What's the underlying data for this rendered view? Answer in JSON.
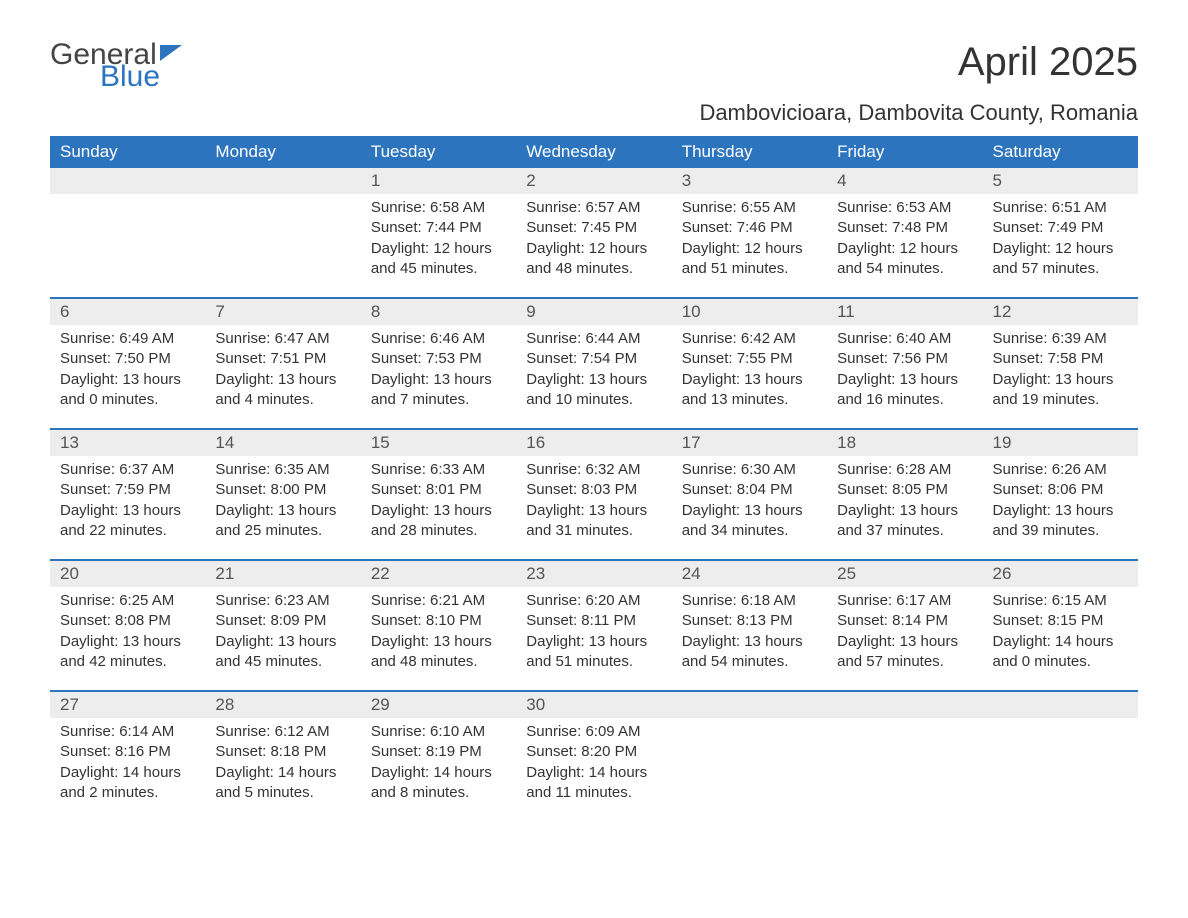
{
  "logo": {
    "text1": "General",
    "text2": "Blue"
  },
  "title": "April 2025",
  "location": "Dambovicioara, Dambovita County, Romania",
  "colors": {
    "header_bg": "#2d74bf",
    "header_text": "#ffffff",
    "daynum_bg": "#ededed",
    "row_border": "#2d74bf",
    "body_text": "#333333",
    "page_bg": "#ffffff"
  },
  "columns": [
    "Sunday",
    "Monday",
    "Tuesday",
    "Wednesday",
    "Thursday",
    "Friday",
    "Saturday"
  ],
  "weeks": [
    {
      "days": [
        null,
        null,
        {
          "n": "1",
          "sunrise": "6:58 AM",
          "sunset": "7:44 PM",
          "dl": "12 hours and 45 minutes."
        },
        {
          "n": "2",
          "sunrise": "6:57 AM",
          "sunset": "7:45 PM",
          "dl": "12 hours and 48 minutes."
        },
        {
          "n": "3",
          "sunrise": "6:55 AM",
          "sunset": "7:46 PM",
          "dl": "12 hours and 51 minutes."
        },
        {
          "n": "4",
          "sunrise": "6:53 AM",
          "sunset": "7:48 PM",
          "dl": "12 hours and 54 minutes."
        },
        {
          "n": "5",
          "sunrise": "6:51 AM",
          "sunset": "7:49 PM",
          "dl": "12 hours and 57 minutes."
        }
      ]
    },
    {
      "days": [
        {
          "n": "6",
          "sunrise": "6:49 AM",
          "sunset": "7:50 PM",
          "dl": "13 hours and 0 minutes."
        },
        {
          "n": "7",
          "sunrise": "6:47 AM",
          "sunset": "7:51 PM",
          "dl": "13 hours and 4 minutes."
        },
        {
          "n": "8",
          "sunrise": "6:46 AM",
          "sunset": "7:53 PM",
          "dl": "13 hours and 7 minutes."
        },
        {
          "n": "9",
          "sunrise": "6:44 AM",
          "sunset": "7:54 PM",
          "dl": "13 hours and 10 minutes."
        },
        {
          "n": "10",
          "sunrise": "6:42 AM",
          "sunset": "7:55 PM",
          "dl": "13 hours and 13 minutes."
        },
        {
          "n": "11",
          "sunrise": "6:40 AM",
          "sunset": "7:56 PM",
          "dl": "13 hours and 16 minutes."
        },
        {
          "n": "12",
          "sunrise": "6:39 AM",
          "sunset": "7:58 PM",
          "dl": "13 hours and 19 minutes."
        }
      ]
    },
    {
      "days": [
        {
          "n": "13",
          "sunrise": "6:37 AM",
          "sunset": "7:59 PM",
          "dl": "13 hours and 22 minutes."
        },
        {
          "n": "14",
          "sunrise": "6:35 AM",
          "sunset": "8:00 PM",
          "dl": "13 hours and 25 minutes."
        },
        {
          "n": "15",
          "sunrise": "6:33 AM",
          "sunset": "8:01 PM",
          "dl": "13 hours and 28 minutes."
        },
        {
          "n": "16",
          "sunrise": "6:32 AM",
          "sunset": "8:03 PM",
          "dl": "13 hours and 31 minutes."
        },
        {
          "n": "17",
          "sunrise": "6:30 AM",
          "sunset": "8:04 PM",
          "dl": "13 hours and 34 minutes."
        },
        {
          "n": "18",
          "sunrise": "6:28 AM",
          "sunset": "8:05 PM",
          "dl": "13 hours and 37 minutes."
        },
        {
          "n": "19",
          "sunrise": "6:26 AM",
          "sunset": "8:06 PM",
          "dl": "13 hours and 39 minutes."
        }
      ]
    },
    {
      "days": [
        {
          "n": "20",
          "sunrise": "6:25 AM",
          "sunset": "8:08 PM",
          "dl": "13 hours and 42 minutes."
        },
        {
          "n": "21",
          "sunrise": "6:23 AM",
          "sunset": "8:09 PM",
          "dl": "13 hours and 45 minutes."
        },
        {
          "n": "22",
          "sunrise": "6:21 AM",
          "sunset": "8:10 PM",
          "dl": "13 hours and 48 minutes."
        },
        {
          "n": "23",
          "sunrise": "6:20 AM",
          "sunset": "8:11 PM",
          "dl": "13 hours and 51 minutes."
        },
        {
          "n": "24",
          "sunrise": "6:18 AM",
          "sunset": "8:13 PM",
          "dl": "13 hours and 54 minutes."
        },
        {
          "n": "25",
          "sunrise": "6:17 AM",
          "sunset": "8:14 PM",
          "dl": "13 hours and 57 minutes."
        },
        {
          "n": "26",
          "sunrise": "6:15 AM",
          "sunset": "8:15 PM",
          "dl": "14 hours and 0 minutes."
        }
      ]
    },
    {
      "days": [
        {
          "n": "27",
          "sunrise": "6:14 AM",
          "sunset": "8:16 PM",
          "dl": "14 hours and 2 minutes."
        },
        {
          "n": "28",
          "sunrise": "6:12 AM",
          "sunset": "8:18 PM",
          "dl": "14 hours and 5 minutes."
        },
        {
          "n": "29",
          "sunrise": "6:10 AM",
          "sunset": "8:19 PM",
          "dl": "14 hours and 8 minutes."
        },
        {
          "n": "30",
          "sunrise": "6:09 AM",
          "sunset": "8:20 PM",
          "dl": "14 hours and 11 minutes."
        },
        null,
        null,
        null
      ]
    }
  ],
  "labels": {
    "sunrise": "Sunrise: ",
    "sunset": "Sunset: ",
    "daylight": "Daylight: "
  }
}
